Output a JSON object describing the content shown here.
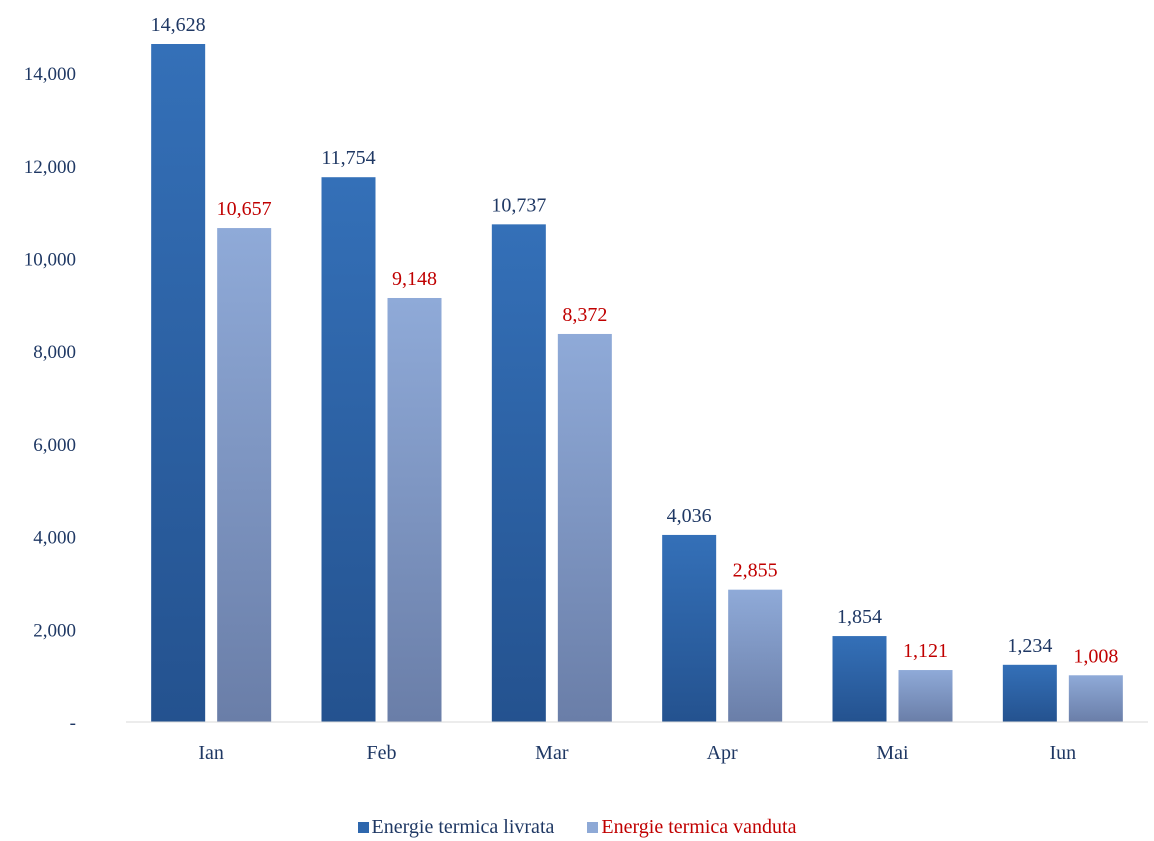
{
  "chart_data": {
    "type": "bar",
    "categories": [
      "Ian",
      "Feb",
      "Mar",
      "Apr",
      "Mai",
      "Iun"
    ],
    "series": [
      {
        "name": "Energie termica livrata",
        "values": [
          14628,
          11754,
          10737,
          4036,
          1854,
          1234
        ],
        "color": "#2e67ad",
        "label_color": "#1f3864"
      },
      {
        "name": "Energie termica vanduta",
        "values": [
          10657,
          9148,
          8372,
          2855,
          1121,
          1008
        ],
        "color": "#8ea9d6",
        "label_color": "#c00000"
      }
    ],
    "value_labels": [
      [
        "14,628",
        "11,754",
        "10,737",
        "4,036",
        "1,854",
        "1,234"
      ],
      [
        "10,657",
        "9,148",
        "8,372",
        "2,855",
        "1,121",
        "1,008"
      ]
    ],
    "yticks": [
      {
        "value": 0,
        "label": "-"
      },
      {
        "value": 2000,
        "label": "2,000"
      },
      {
        "value": 4000,
        "label": "4,000"
      },
      {
        "value": 6000,
        "label": "6,000"
      },
      {
        "value": 8000,
        "label": "8,000"
      },
      {
        "value": 10000,
        "label": "10,000"
      },
      {
        "value": 12000,
        "label": "12,000"
      },
      {
        "value": 14000,
        "label": "14,000"
      }
    ],
    "ylim": [
      0,
      14628
    ],
    "grid": false,
    "legend_position": "bottom",
    "title": "",
    "xlabel": "",
    "ylabel": ""
  }
}
